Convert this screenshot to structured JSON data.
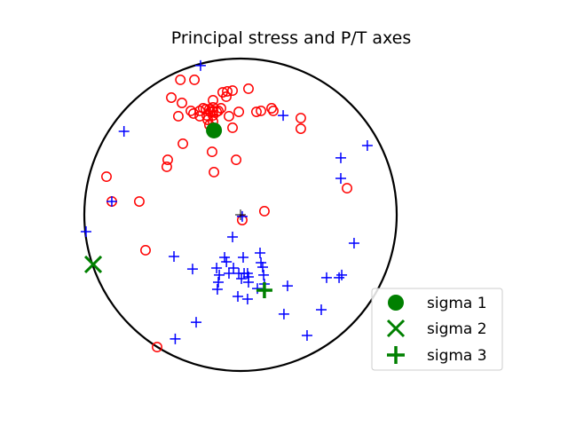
{
  "chart_data": {
    "type": "scatter",
    "projection": "stereonet",
    "title": "Principal stress and P/T axes",
    "legend": {
      "placement": "lower-right",
      "entries": [
        {
          "label": "sigma 1",
          "marker": "filled-circle",
          "color": "#008000"
        },
        {
          "label": "sigma 2",
          "marker": "x",
          "color": "#008000"
        },
        {
          "label": "sigma 3",
          "marker": "plus",
          "color": "#008000"
        }
      ]
    },
    "series": [
      {
        "marker": "open-circle",
        "color": "#ff0000",
        "points": [
          [
            -0.385,
            0.864
          ],
          [
            -0.295,
            0.864
          ],
          [
            -0.443,
            0.75
          ],
          [
            -0.375,
            0.716
          ],
          [
            -0.398,
            0.631
          ],
          [
            -0.301,
            0.648
          ],
          [
            -0.318,
            0.665
          ],
          [
            -0.261,
            0.665
          ],
          [
            -0.239,
            0.682
          ],
          [
            -0.261,
            0.631
          ],
          [
            -0.222,
            0.676
          ],
          [
            -0.216,
            0.636
          ],
          [
            -0.199,
            0.676
          ],
          [
            -0.176,
            0.688
          ],
          [
            -0.193,
            0.659
          ],
          [
            -0.176,
            0.665
          ],
          [
            -0.153,
            0.659
          ],
          [
            -0.176,
            0.636
          ],
          [
            -0.21,
            0.608
          ],
          [
            -0.199,
            0.574
          ],
          [
            -0.176,
            0.597
          ],
          [
            -0.176,
            0.733
          ],
          [
            -0.125,
            0.682
          ],
          [
            -0.142,
            0.665
          ],
          [
            -0.091,
            0.756
          ],
          [
            -0.114,
            0.784
          ],
          [
            -0.085,
            0.79
          ],
          [
            -0.051,
            0.795
          ],
          [
            -0.074,
            0.631
          ],
          [
            -0.051,
            0.557
          ],
          [
            -0.011,
            0.659
          ],
          [
            0.051,
            0.807
          ],
          [
            0.102,
            0.659
          ],
          [
            0.131,
            0.665
          ],
          [
            0.199,
            0.682
          ],
          [
            0.21,
            0.665
          ],
          [
            0.386,
            0.619
          ],
          [
            0.386,
            0.551
          ],
          [
            -0.369,
            0.455
          ],
          [
            -0.182,
            0.403
          ],
          [
            -0.466,
            0.352
          ],
          [
            -0.472,
            0.307
          ],
          [
            -0.858,
            0.244
          ],
          [
            -0.17,
            0.273
          ],
          [
            -0.028,
            0.352
          ],
          [
            0.682,
            0.17
          ],
          [
            -0.824,
            0.085
          ],
          [
            -0.648,
            0.085
          ],
          [
            0.153,
            0.023
          ],
          [
            0.011,
            -0.034
          ],
          [
            -0.608,
            -0.227
          ],
          [
            -0.534,
            -0.847
          ]
        ]
      },
      {
        "marker": "plus",
        "color": "#0000ff",
        "points": [
          [
            -0.256,
            0.955
          ],
          [
            0.273,
            0.636
          ],
          [
            -0.746,
            0.534
          ],
          [
            0.812,
            0.443
          ],
          [
            0.642,
            0.364
          ],
          [
            0.642,
            0.233
          ],
          [
            -0.824,
            0.085
          ],
          [
            -0.989,
            -0.108
          ],
          [
            0.727,
            -0.182
          ],
          [
            -0.426,
            -0.267
          ],
          [
            -0.051,
            -0.142
          ],
          [
            -0.102,
            -0.273
          ],
          [
            -0.307,
            -0.347
          ],
          [
            -0.153,
            -0.341
          ],
          [
            0.017,
            -0.273
          ],
          [
            0.125,
            -0.244
          ],
          [
            0.131,
            -0.307
          ],
          [
            -0.09,
            -0.301
          ],
          [
            -0.045,
            -0.341
          ],
          [
            -0.074,
            -0.375
          ],
          [
            -0.011,
            -0.375
          ],
          [
            0.023,
            -0.375
          ],
          [
            0.045,
            -0.375
          ],
          [
            -0.136,
            -0.386
          ],
          [
            0.006,
            -0.409
          ],
          [
            0.051,
            -0.398
          ],
          [
            0.148,
            -0.386
          ],
          [
            0.142,
            -0.335
          ],
          [
            -0.142,
            -0.432
          ],
          [
            0.051,
            -0.432
          ],
          [
            0.108,
            -0.472
          ],
          [
            0.153,
            -0.443
          ],
          [
            0.301,
            -0.455
          ],
          [
            0.551,
            -0.403
          ],
          [
            0.631,
            -0.403
          ],
          [
            0.648,
            -0.386
          ],
          [
            -0.148,
            -0.477
          ],
          [
            -0.017,
            -0.523
          ],
          [
            0.045,
            -0.54
          ],
          [
            0.517,
            -0.608
          ],
          [
            0.278,
            -0.636
          ],
          [
            -0.284,
            -0.688
          ],
          [
            0.426,
            -0.773
          ],
          [
            -0.418,
            -0.795
          ],
          [
            0.011,
            -0.011
          ]
        ]
      },
      {
        "name": "sigma 1",
        "marker": "filled-circle",
        "color": "#008000",
        "points": [
          [
            -0.17,
            0.54
          ]
        ]
      },
      {
        "name": "sigma 2",
        "marker": "x",
        "color": "#008000",
        "points": [
          [
            -0.943,
            -0.318
          ]
        ]
      },
      {
        "name": "sigma 3",
        "marker": "plus",
        "color": "#008000",
        "points": [
          [
            0.153,
            -0.483
          ]
        ]
      }
    ]
  }
}
